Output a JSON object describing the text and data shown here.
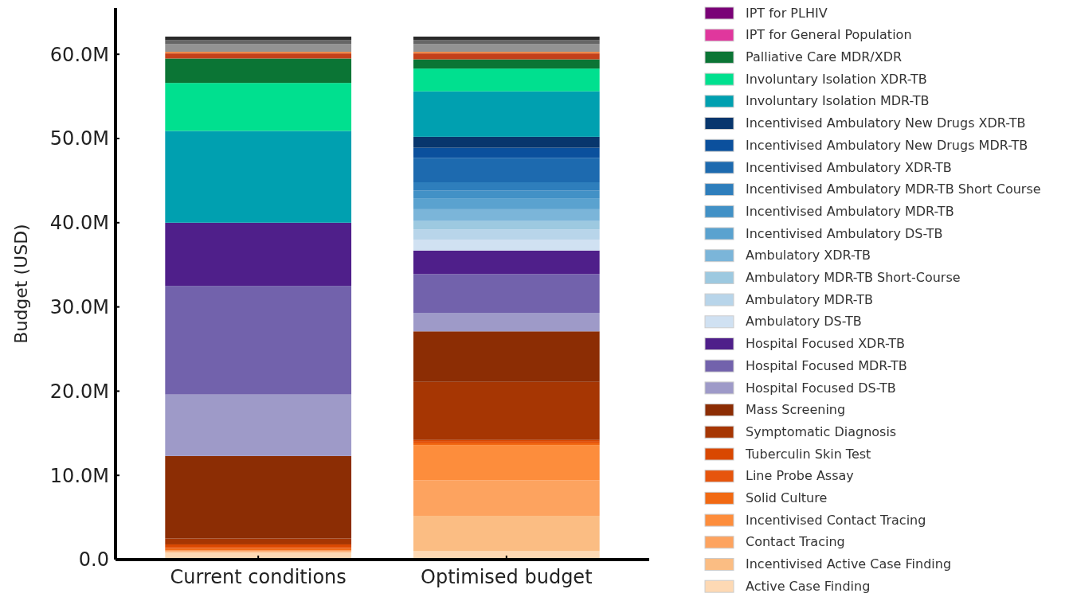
{
  "chart_data": {
    "type": "bar",
    "stacked": true,
    "ylabel": "Budget (USD)",
    "categories": [
      "Current conditions",
      "Optimised budget"
    ],
    "ylim": [
      0,
      65.5
    ],
    "yticks": [
      {
        "value": 0,
        "label": "0.0"
      },
      {
        "value": 10,
        "label": "10.0M"
      },
      {
        "value": 20,
        "label": "20.0M"
      },
      {
        "value": 30,
        "label": "30.0M"
      },
      {
        "value": 40,
        "label": "40.0M"
      },
      {
        "value": 50,
        "label": "50.0M"
      },
      {
        "value": 60,
        "label": "60.0M"
      }
    ],
    "legend": "right",
    "series": [
      {
        "name": "Active Case Finding",
        "color": "#fdd9b4",
        "values": [
          0.8,
          1.0
        ]
      },
      {
        "name": "Incentivised Active Case Finding",
        "color": "#fbbd83",
        "values": [
          0.1,
          4.2
        ]
      },
      {
        "name": "Contact Tracing",
        "color": "#fda35f",
        "values": [
          0.1,
          4.2
        ]
      },
      {
        "name": "Incentivised Contact Tracing",
        "color": "#fd8d3c",
        "values": [
          0.1,
          4.2
        ]
      },
      {
        "name": "Solid Culture",
        "color": "#f16913",
        "values": [
          0.2,
          0.2
        ]
      },
      {
        "name": "Line Probe Assay",
        "color": "#e6550d",
        "values": [
          0.2,
          0.2
        ]
      },
      {
        "name": "Tuberculin Skin Test",
        "color": "#d94801",
        "values": [
          0.3,
          0.2
        ]
      },
      {
        "name": "Symptomatic Diagnosis",
        "color": "#a63603",
        "values": [
          0.7,
          6.9
        ]
      },
      {
        "name": "Mass Screening",
        "color": "#8c2d04",
        "values": [
          9.8,
          6.0
        ]
      },
      {
        "name": "Hospital Focused DS-TB",
        "color": "#9e9ac8",
        "values": [
          7.3,
          2.2
        ]
      },
      {
        "name": "Hospital Focused MDR-TB",
        "color": "#7262ac",
        "values": [
          12.9,
          4.6
        ]
      },
      {
        "name": "Hospital Focused XDR-TB",
        "color": "#4f1f8a",
        "values": [
          7.5,
          2.8
        ]
      },
      {
        "name": "Ambulatory DS-TB",
        "color": "#d0e1f2",
        "values": [
          0,
          1.3
        ]
      },
      {
        "name": "Ambulatory MDR-TB",
        "color": "#b8d5ea",
        "values": [
          0,
          1.2
        ]
      },
      {
        "name": "Ambulatory MDR-TB Short-Course",
        "color": "#9dc9e0",
        "values": [
          0,
          1.0
        ]
      },
      {
        "name": "Ambulatory XDR-TB",
        "color": "#7bb5d9",
        "values": [
          0,
          1.4
        ]
      },
      {
        "name": "Incentivised Ambulatory DS-TB",
        "color": "#5aa2cf",
        "values": [
          0,
          1.3
        ]
      },
      {
        "name": "Incentivised Ambulatory MDR-TB",
        "color": "#4291c6",
        "values": [
          0,
          0.9
        ]
      },
      {
        "name": "Incentivised Ambulatory MDR-TB Short Course",
        "color": "#2e7ebc",
        "values": [
          0,
          1.0
        ]
      },
      {
        "name": "Incentivised Ambulatory XDR-TB",
        "color": "#1d6aaf",
        "values": [
          0,
          2.9
        ]
      },
      {
        "name": "Incentivised Ambulatory New Drugs MDR-TB",
        "color": "#0b509d",
        "values": [
          0,
          1.2
        ]
      },
      {
        "name": "Incentivised Ambulatory New Drugs XDR-TB",
        "color": "#08366d",
        "values": [
          0,
          1.3
        ]
      },
      {
        "name": "Involuntary Isolation MDR-TB",
        "color": "#00a0b0",
        "values": [
          10.9,
          5.4
        ]
      },
      {
        "name": "Involuntary Isolation XDR-TB",
        "color": "#00e08f",
        "values": [
          5.7,
          2.7
        ]
      },
      {
        "name": "Palliative Care MDR/XDR",
        "color": "#0b7535",
        "values": [
          2.9,
          1.1
        ]
      },
      {
        "name": "IPT for General Population",
        "color": "#e0379d",
        "values": [
          0,
          0
        ]
      },
      {
        "name": "IPT for PLHIV",
        "color": "#7a0177",
        "values": [
          0,
          0
        ]
      },
      {
        "color": "#c4401a",
        "values": [
          0.6,
          0.7
        ]
      },
      {
        "color": "#f08a4a",
        "values": [
          0.2,
          0.2
        ]
      },
      {
        "color": "#939393",
        "values": [
          0.9,
          0.9
        ]
      },
      {
        "color": "#666666",
        "values": [
          0.5,
          0.5
        ]
      },
      {
        "color": "#2a2a2a",
        "values": [
          0.4,
          0.4
        ]
      }
    ]
  }
}
